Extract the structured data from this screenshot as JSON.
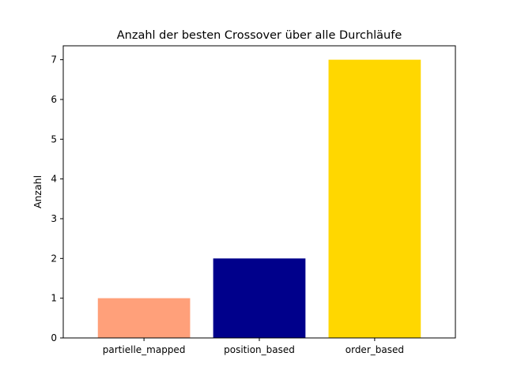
{
  "chart_data": {
    "type": "bar",
    "title": "Anzahl der besten Crossover über alle Durchläufe",
    "xlabel": "",
    "ylabel": "Anzahl",
    "categories": [
      "partielle_mapped",
      "position_based",
      "order_based"
    ],
    "values": [
      1,
      2,
      7
    ],
    "colors": [
      "#FFA07A",
      "#00008B",
      "#FFD700"
    ],
    "ylim": [
      0,
      7.35
    ],
    "yticks": [
      0,
      1,
      2,
      3,
      4,
      5,
      6,
      7
    ],
    "grid": false,
    "legend": "none"
  }
}
